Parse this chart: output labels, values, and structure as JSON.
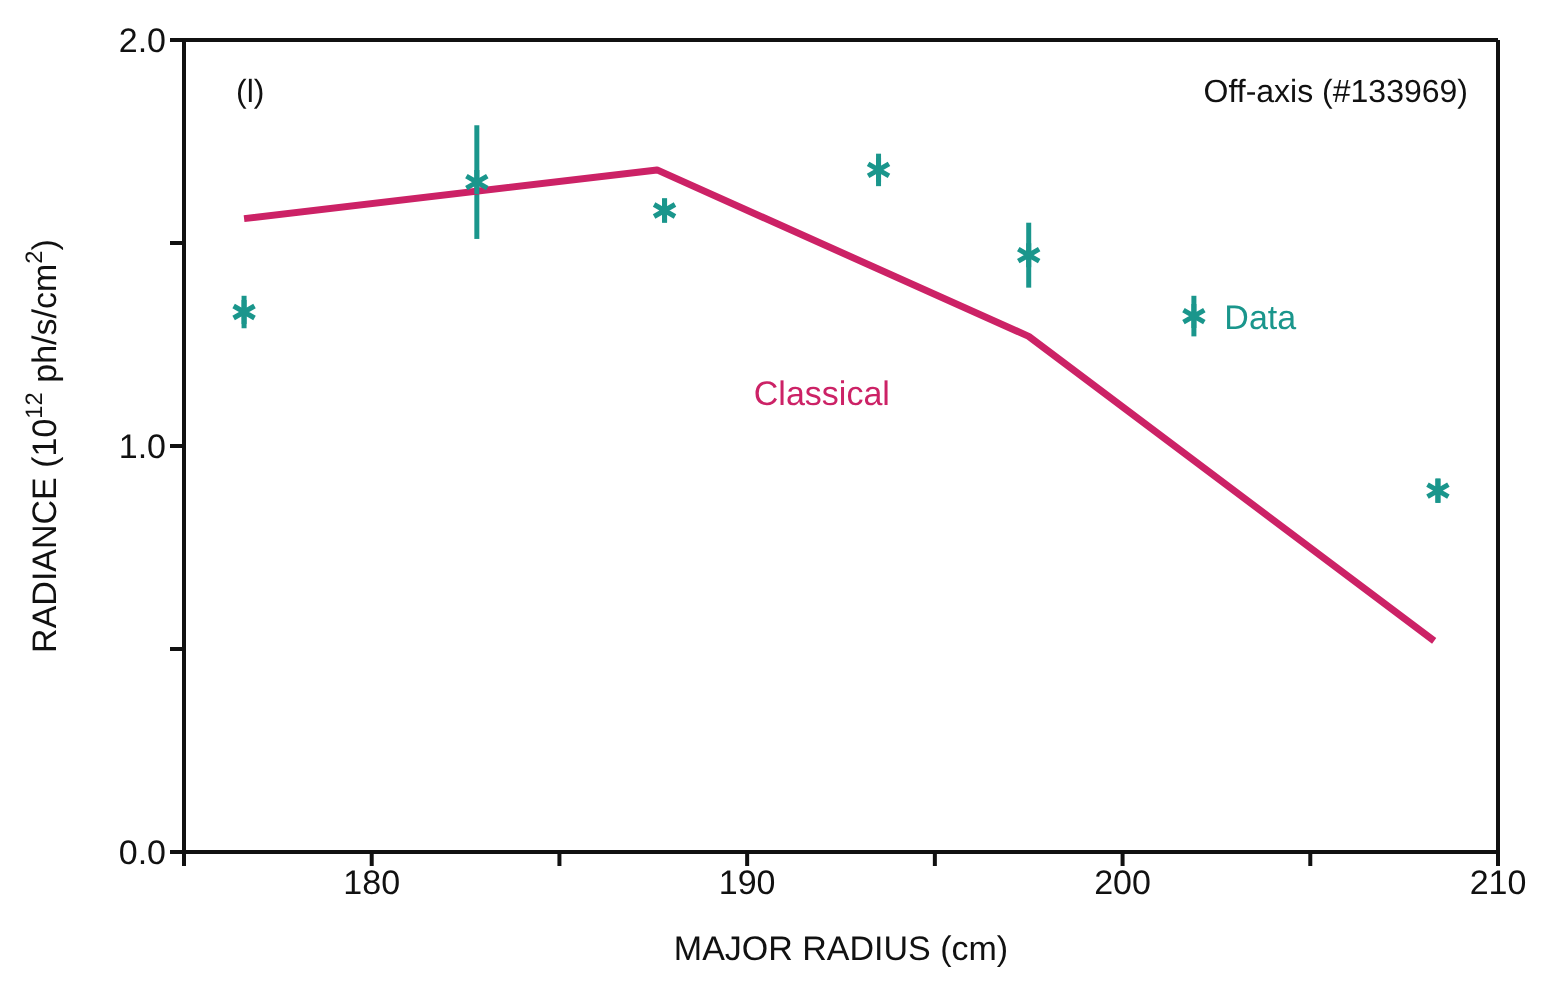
{
  "chart_data": {
    "type": "scatter",
    "xlabel": "MAJOR RADIUS (cm)",
    "ylabel": "RADIANCE (10$^{12}$ ph/s/cm$^{2}$)",
    "annotations": [
      "(l)",
      "Off-axis (#133969)"
    ],
    "xlim": [
      175,
      210
    ],
    "xticks": [
      {
        "value": 175,
        "label": null
      },
      180,
      {
        "value": 185,
        "label": null
      },
      190,
      {
        "value": 195,
        "label": null
      },
      200,
      {
        "value": 205,
        "label": null
      },
      210
    ],
    "ylim": [
      0,
      2
    ],
    "yticks": [
      {
        "value": 0,
        "label": "0.0"
      },
      {
        "value": 0.5,
        "label": null
      },
      {
        "value": 1,
        "label": "1.0"
      },
      {
        "value": 1.5,
        "label": null
      },
      {
        "value": 2,
        "label": "2.0"
      }
    ],
    "grid": false,
    "legend": false,
    "series": [
      {
        "name": "Data",
        "marker": "cross",
        "color": "#1a968c",
        "x": [
          176.6,
          182.8,
          187.8,
          193.5,
          197.5,
          201.9,
          208.4
        ],
        "values": [
          1.33,
          1.65,
          1.58,
          1.68,
          1.47,
          1.32,
          0.89
        ],
        "errors": [
          0.04,
          0.14,
          0.03,
          0.04,
          0.08,
          0.05,
          0.03
        ]
      },
      {
        "name": "Classical",
        "type": "line",
        "marker": "none",
        "color": "#cc2266",
        "x": [
          176.6,
          187.6,
          197.5,
          208.3
        ],
        "values": [
          1.56,
          1.68,
          1.27,
          0.52
        ]
      }
    ]
  }
}
